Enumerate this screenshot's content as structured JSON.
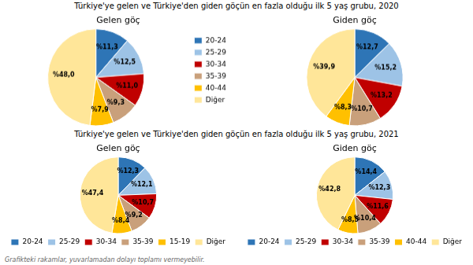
{
  "chart_data": [
    {
      "type": "pie",
      "title": "Türkiye'ye gelen ve Türkiye'den giden göçün en fazla olduğu ilk 5 yaş grubu, 2020",
      "subtitle": "Gelen göç",
      "categories": [
        "20-24",
        "25-29",
        "30-34",
        "35-39",
        "40-44",
        "Diğer"
      ],
      "values": [
        11.3,
        12.5,
        11.0,
        9.3,
        7.9,
        48.0
      ],
      "value_labels": [
        "%11,3",
        "%12,5",
        "%11,0",
        "%9,3",
        "%7,9",
        "%48,0"
      ],
      "colors": [
        "#2E75B6",
        "#9DC3E6",
        "#C00000",
        "#C9A07B",
        "#FFC000",
        "#FFE699"
      ],
      "data_labels": true,
      "legend": "right"
    },
    {
      "type": "pie",
      "subtitle": "Giden göç",
      "categories": [
        "20-24",
        "25-29",
        "30-34",
        "35-39",
        "40-44",
        "Diğer"
      ],
      "values": [
        12.7,
        15.2,
        13.2,
        10.7,
        8.3,
        39.9
      ],
      "value_labels": [
        "%12,7",
        "%15,2",
        "%13,2",
        "%10,7",
        "%8,3",
        "%39,9"
      ],
      "colors": [
        "#2E75B6",
        "#9DC3E6",
        "#C00000",
        "#C9A07B",
        "#FFC000",
        "#FFE699"
      ],
      "data_labels": true
    },
    {
      "type": "pie",
      "title": "Türkiye'ye gelen ve Türkiye'den giden göçün en fazla olduğu ilk 5 yaş grubu, 2021",
      "subtitle": "Gelen göç",
      "categories": [
        "20-24",
        "25-29",
        "30-34",
        "35-39",
        "15-19",
        "Diğer"
      ],
      "values": [
        12.3,
        12.1,
        10.7,
        9.2,
        8.4,
        47.4
      ],
      "value_labels": [
        "%12,3",
        "%12,1",
        "%10,7",
        "%9,2",
        "%8,4",
        "%47,4"
      ],
      "colors": [
        "#2E75B6",
        "#9DC3E6",
        "#C00000",
        "#C9A07B",
        "#FFC000",
        "#FFE699"
      ],
      "data_labels": true,
      "legend": "bottom"
    },
    {
      "type": "pie",
      "subtitle": "Giden göç",
      "categories": [
        "20-24",
        "25-29",
        "30-34",
        "35-39",
        "40-44",
        "Diğer"
      ],
      "values": [
        14.4,
        12.3,
        11.6,
        10.4,
        8.5,
        42.8
      ],
      "value_labels": [
        "%14,4",
        "%12,3",
        "%11,6",
        "%10,4",
        "%8,5",
        "%42,8"
      ],
      "colors": [
        "#2E75B6",
        "#9DC3E6",
        "#C00000",
        "#C9A07B",
        "#FFC000",
        "#FFE699"
      ],
      "data_labels": true,
      "legend": "bottom",
      "annotations": [
        "Grafikteki rakamlar, yuvarlamadan dolayı toplamı vermeyebilir."
      ]
    }
  ]
}
